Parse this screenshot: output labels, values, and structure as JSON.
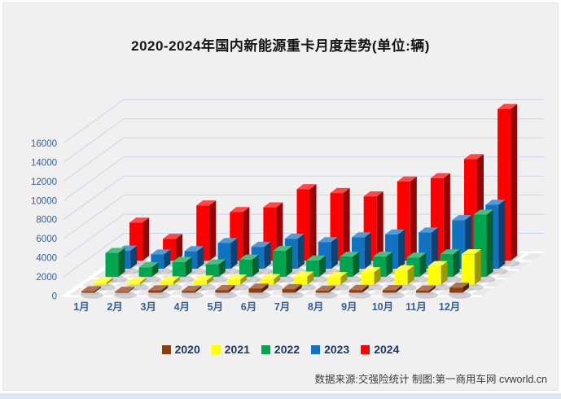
{
  "title": "2020-2024年国内新能源重卡月度走势(单位:辆)",
  "footer": {
    "source": "数据来源:交强险统计 制图:第一商用车网 cvworld.cn"
  },
  "colors": {
    "panel_background": "#F0F0F1",
    "bottom_strip": "#DBE5F1",
    "gridline": "#C7D6EA",
    "axis_text": "#365F91",
    "legend_text": "#1F3864",
    "floor": "#E9E9EC"
  },
  "chart_data": {
    "type": "bar",
    "projection": "3d",
    "title": "2020-2024年国内新能源重卡月度走势(单位:辆)",
    "xlabel": "",
    "ylabel": "",
    "ylim": [
      0,
      16000
    ],
    "ytick_step": 2000,
    "yticks": [
      0,
      2000,
      4000,
      6000,
      8000,
      10000,
      12000,
      14000,
      16000
    ],
    "grid": true,
    "legend_position": "bottom",
    "categories": [
      "1月",
      "2月",
      "3月",
      "4月",
      "5月",
      "6月",
      "7月",
      "8月",
      "9月",
      "10月",
      "11月",
      "12月"
    ],
    "series": [
      {
        "name": "2020",
        "color": "#8F3E10",
        "values": [
          150,
          100,
          250,
          200,
          280,
          430,
          380,
          220,
          290,
          270,
          240,
          540
        ]
      },
      {
        "name": "2021",
        "color": "#FFFF00",
        "values": [
          230,
          230,
          350,
          450,
          550,
          600,
          850,
          800,
          1300,
          1500,
          1950,
          3200
        ]
      },
      {
        "name": "2022",
        "color": "#00A550",
        "values": [
          2500,
          1000,
          1550,
          1300,
          1800,
          2700,
          1700,
          2100,
          2100,
          2000,
          2350,
          6500
        ]
      },
      {
        "name": "2023",
        "color": "#1272C2",
        "values": [
          1900,
          1500,
          1850,
          2700,
          2300,
          3150,
          2800,
          3300,
          3600,
          3800,
          5100,
          6700
        ]
      },
      {
        "name": "2024",
        "color": "#FE0000",
        "values": [
          4000,
          2300,
          5800,
          5100,
          5600,
          7500,
          7100,
          6750,
          8300,
          8650,
          10650,
          15900
        ]
      }
    ]
  }
}
